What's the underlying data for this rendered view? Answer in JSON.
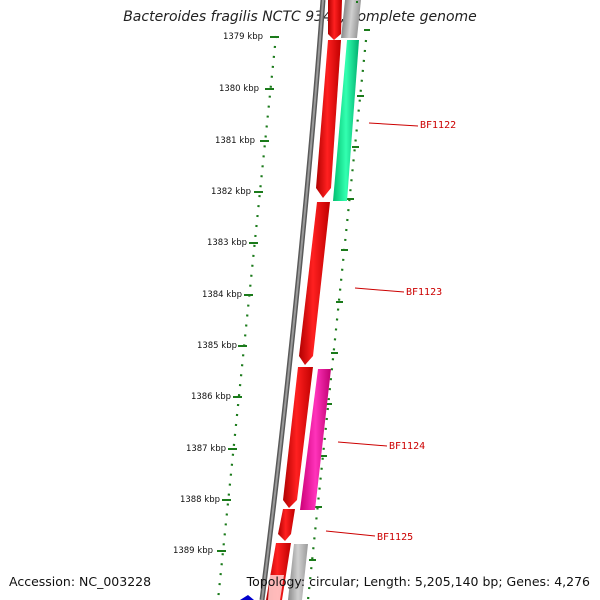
{
  "title": "Bacteroides fragilis NCTC 9343, complete genome",
  "accession_text": "Accession: NC_003228",
  "topology_text": "Topology: circular; Length: 5,205,140 bp; Genes: 4,276",
  "ticks": [
    "1379 kbp",
    "1380 kbp",
    "1381 kbp",
    "1382 kbp",
    "1383 kbp",
    "1384 kbp",
    "1385 kbp",
    "1386 kbp",
    "1387 kbp",
    "1388 kbp",
    "1389 kbp"
  ],
  "gene_labels": [
    "BF1122",
    "BF1123",
    "BF1124",
    "BF1125"
  ],
  "colors": {
    "cds": "#ff0000",
    "blast_green": "#00ee99",
    "blast_magenta": "#ff1aaa",
    "grey": "#c8c8c8",
    "backbone": "#7a7a7a",
    "tick": "#1a7a1a",
    "label": "#cc0000"
  }
}
